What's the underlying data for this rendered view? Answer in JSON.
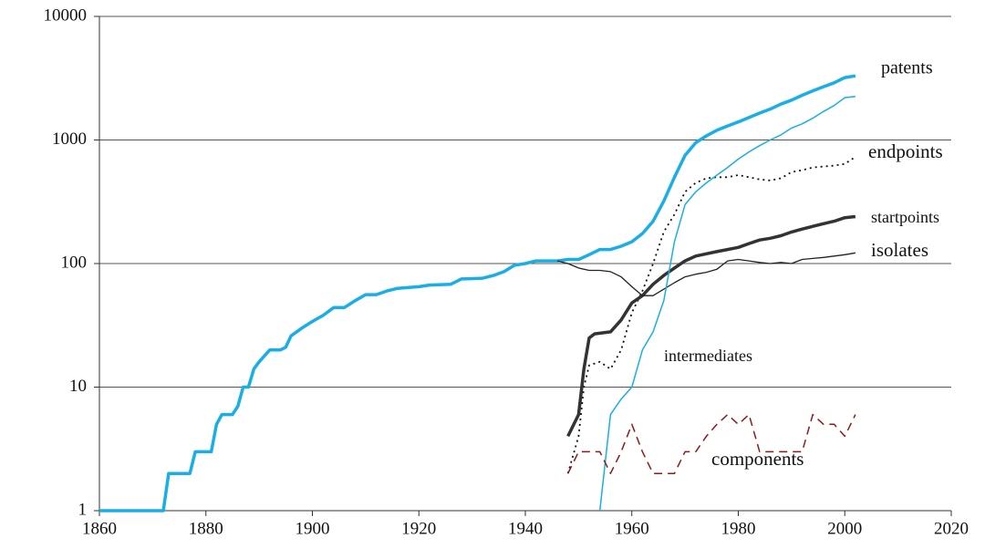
{
  "chart_data": {
    "type": "line",
    "log_y": true,
    "grid": "y",
    "xlim": [
      1860,
      2020
    ],
    "xticks": [
      1860,
      1880,
      1900,
      1920,
      1940,
      1960,
      1980,
      2000,
      2020
    ],
    "ylim": [
      1,
      10000
    ],
    "yticks": [
      1,
      10,
      100,
      1000,
      10000
    ],
    "series": [
      {
        "name": "patents",
        "color": "#1aaee6",
        "linestyle": "solid",
        "x": [
          1860,
          1872,
          1873,
          1877,
          1878,
          1881,
          1882,
          1883,
          1885,
          1886,
          1887,
          1888,
          1889,
          1890,
          1892,
          1894,
          1895,
          1896,
          1898,
          1900,
          1902,
          1904,
          1906,
          1908,
          1910,
          1912,
          1914,
          1916,
          1920,
          1922,
          1926,
          1928,
          1932,
          1934,
          1936,
          1938,
          1940,
          1942,
          1946,
          1948,
          1950,
          1952,
          1954,
          1956,
          1958,
          1960,
          1962,
          1964,
          1966,
          1968,
          1970,
          1972,
          1974,
          1976,
          1978,
          1980,
          1982,
          1984,
          1986,
          1988,
          1990,
          1992,
          1994,
          1996,
          1998,
          2000,
          2002
        ],
        "values": [
          1,
          1,
          2,
          2,
          3,
          3,
          5,
          6,
          6,
          7,
          10,
          10,
          14,
          16,
          20,
          20,
          21,
          26,
          30,
          34,
          38,
          44,
          44,
          50,
          56,
          56,
          60,
          63,
          65,
          67,
          68,
          75,
          76,
          80,
          86,
          97,
          100,
          105,
          105,
          108,
          108,
          118,
          130,
          130,
          138,
          150,
          175,
          220,
          320,
          500,
          750,
          950,
          1080,
          1200,
          1300,
          1400,
          1520,
          1650,
          1780,
          1950,
          2100,
          2300,
          2500,
          2700,
          2900,
          3200,
          3300
        ]
      },
      {
        "name": "endpoints",
        "color": "#111111",
        "linestyle": "dotted",
        "x": [
          1948,
          1950,
          1951,
          1952,
          1954,
          1956,
          1958,
          1960,
          1962,
          1964,
          1966,
          1968,
          1970,
          1972,
          1974,
          1976,
          1978,
          1980,
          1982,
          1984,
          1986,
          1988,
          1990,
          1992,
          1994,
          1996,
          1998,
          2000,
          2002
        ],
        "values": [
          2,
          4,
          10,
          15,
          16,
          14,
          20,
          40,
          60,
          100,
          180,
          250,
          380,
          450,
          490,
          500,
          500,
          520,
          500,
          480,
          470,
          490,
          550,
          570,
          600,
          610,
          620,
          640,
          730
        ]
      },
      {
        "name": "startpoints",
        "color": "#333333",
        "linestyle": "solid",
        "x": [
          1948,
          1950,
          1951,
          1952,
          1953,
          1956,
          1958,
          1960,
          1962,
          1964,
          1966,
          1968,
          1970,
          1972,
          1974,
          1976,
          1978,
          1980,
          1982,
          1984,
          1986,
          1988,
          1990,
          1992,
          1994,
          1996,
          1998,
          2000,
          2002
        ],
        "values": [
          4,
          6,
          14,
          25,
          27,
          28,
          35,
          48,
          55,
          68,
          80,
          92,
          105,
          115,
          120,
          125,
          130,
          135,
          145,
          155,
          160,
          168,
          180,
          190,
          200,
          210,
          220,
          235,
          240
        ]
      },
      {
        "name": "isolates",
        "color": "#222222",
        "linestyle": "solid",
        "x": [
          1946,
          1948,
          1950,
          1952,
          1954,
          1956,
          1958,
          1960,
          1962,
          1964,
          1966,
          1968,
          1970,
          1972,
          1974,
          1976,
          1978,
          1980,
          1982,
          1984,
          1986,
          1988,
          1990,
          1992,
          1994,
          1996,
          1998,
          2000,
          2002
        ],
        "values": [
          105,
          100,
          92,
          88,
          88,
          86,
          78,
          65,
          55,
          55,
          62,
          70,
          78,
          82,
          85,
          90,
          105,
          108,
          105,
          102,
          100,
          102,
          100,
          108,
          110,
          112,
          115,
          118,
          122
        ]
      },
      {
        "name": "intermediates",
        "color": "#1aaee6",
        "linestyle": "solid",
        "x": [
          1954,
          1956,
          1958,
          1960,
          1962,
          1964,
          1966,
          1968,
          1970,
          1972,
          1974,
          1976,
          1978,
          1980,
          1982,
          1984,
          1986,
          1988,
          1990,
          1992,
          1994,
          1996,
          1998,
          2000,
          2002
        ],
        "values": [
          1,
          6,
          8,
          10,
          20,
          28,
          50,
          150,
          300,
          380,
          450,
          520,
          600,
          700,
          800,
          900,
          1000,
          1100,
          1250,
          1350,
          1500,
          1700,
          1900,
          2200,
          2250
        ]
      },
      {
        "name": "components",
        "color": "#8b1a1a",
        "linestyle": "dashed",
        "x": [
          1948,
          1950,
          1952,
          1954,
          1956,
          1958,
          1960,
          1962,
          1964,
          1966,
          1968,
          1970,
          1972,
          1974,
          1976,
          1978,
          1980,
          1982,
          1984,
          1986,
          1988,
          1990,
          1992,
          1994,
          1996,
          1998,
          2000,
          2002
        ],
        "values": [
          2,
          3,
          3,
          3,
          2,
          3,
          5,
          3,
          2,
          2,
          2,
          3,
          3,
          4,
          5,
          6,
          5,
          6,
          3,
          3,
          3,
          3,
          3,
          6,
          5,
          5,
          4,
          6
        ]
      }
    ]
  }
}
